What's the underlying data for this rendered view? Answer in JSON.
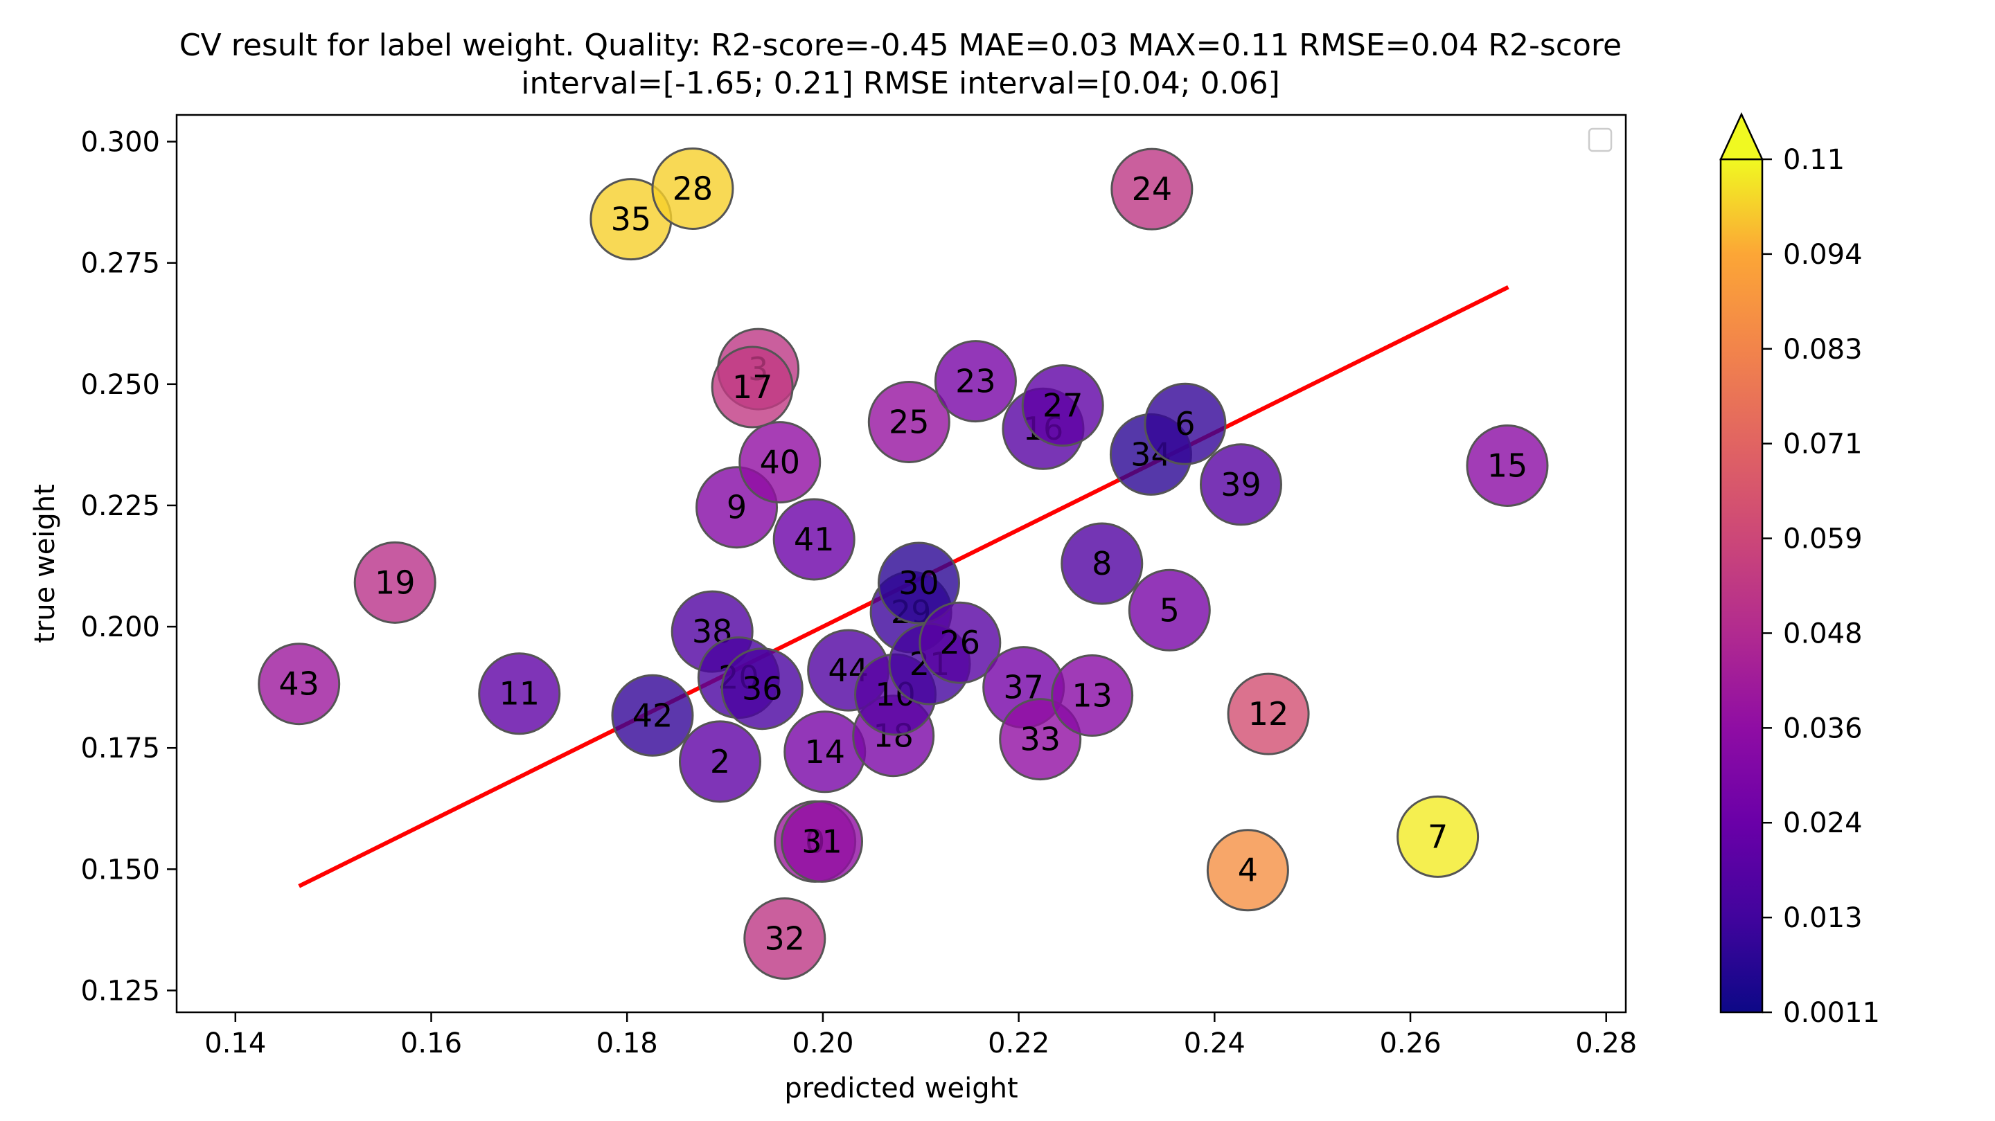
{
  "chart_data": {
    "type": "scatter",
    "title_line1": "CV result for label weight. Quality: R2-score=-0.45 MAE=0.03 MAX=0.11 RMSE=0.04 R2-score",
    "title_line2": "interval=[-1.65; 0.21] RMSE interval=[0.04; 0.06]",
    "xlabel": "predicted weight",
    "ylabel": "true weight",
    "xlim": [
      0.134,
      0.282
    ],
    "ylim": [
      0.1205,
      0.3055
    ],
    "xticks": [
      "0.14",
      "0.16",
      "0.18",
      "0.20",
      "0.22",
      "0.24",
      "0.26",
      "0.28"
    ],
    "yticks": [
      "0.125",
      "0.150",
      "0.175",
      "0.200",
      "0.225",
      "0.250",
      "0.275",
      "0.300"
    ],
    "colormap": "plasma",
    "colorbar": {
      "min": 0.0011,
      "max": 0.11,
      "ticks": [
        "0.0011",
        "0.013",
        "0.024",
        "0.036",
        "0.048",
        "0.059",
        "0.071",
        "0.083",
        "0.094",
        "0.11"
      ],
      "extend": "max"
    },
    "fit_line": {
      "x": [
        0.1465,
        0.27
      ],
      "y": [
        0.1465,
        0.27
      ],
      "color": "#ff0000"
    },
    "legend": "top-right (empty)",
    "points": [
      {
        "label": "43",
        "x": 0.1465,
        "y": 0.1882,
        "err": 0.042
      },
      {
        "label": "19",
        "x": 0.1563,
        "y": 0.2091,
        "err": 0.053
      },
      {
        "label": "11",
        "x": 0.169,
        "y": 0.1862,
        "err": 0.022
      },
      {
        "label": "35",
        "x": 0.1804,
        "y": 0.284,
        "err": 0.104
      },
      {
        "label": "28",
        "x": 0.1867,
        "y": 0.2903,
        "err": 0.104
      },
      {
        "label": "42",
        "x": 0.1826,
        "y": 0.1817,
        "err": 0.01
      },
      {
        "label": "38",
        "x": 0.1887,
        "y": 0.199,
        "err": 0.018
      },
      {
        "label": "2",
        "x": 0.1895,
        "y": 0.1722,
        "err": 0.022
      },
      {
        "label": "20",
        "x": 0.1914,
        "y": 0.1895,
        "err": 0.016
      },
      {
        "label": "9",
        "x": 0.1912,
        "y": 0.2246,
        "err": 0.034
      },
      {
        "label": "3",
        "x": 0.1934,
        "y": 0.2531,
        "err": 0.055
      },
      {
        "label": "17",
        "x": 0.1928,
        "y": 0.2494,
        "err": 0.056
      },
      {
        "label": "36",
        "x": 0.1938,
        "y": 0.1872,
        "err": 0.016
      },
      {
        "label": "40",
        "x": 0.1956,
        "y": 0.2339,
        "err": 0.038
      },
      {
        "label": "32",
        "x": 0.1961,
        "y": 0.1357,
        "err": 0.055
      },
      {
        "label": "0",
        "x": 0.1992,
        "y": 0.1557,
        "err": 0.042
      },
      {
        "label": "31",
        "x": 0.1999,
        "y": 0.1557,
        "err": 0.038
      },
      {
        "label": "41",
        "x": 0.1991,
        "y": 0.218,
        "err": 0.026
      },
      {
        "label": "14",
        "x": 0.2002,
        "y": 0.1742,
        "err": 0.03
      },
      {
        "label": "44",
        "x": 0.2026,
        "y": 0.191,
        "err": 0.018
      },
      {
        "label": "25",
        "x": 0.2088,
        "y": 0.2422,
        "err": 0.04
      },
      {
        "label": "18",
        "x": 0.2072,
        "y": 0.1775,
        "err": 0.031
      },
      {
        "label": "10",
        "x": 0.2074,
        "y": 0.186,
        "err": 0.02
      },
      {
        "label": "29",
        "x": 0.209,
        "y": 0.203,
        "err": 0.012
      },
      {
        "label": "30",
        "x": 0.2098,
        "y": 0.209,
        "err": 0.008
      },
      {
        "label": "21",
        "x": 0.2109,
        "y": 0.1923,
        "err": 0.014
      },
      {
        "label": "26",
        "x": 0.214,
        "y": 0.1967,
        "err": 0.02
      },
      {
        "label": "23",
        "x": 0.2156,
        "y": 0.2506,
        "err": 0.03
      },
      {
        "label": "37",
        "x": 0.2205,
        "y": 0.1875,
        "err": 0.029
      },
      {
        "label": "33",
        "x": 0.2222,
        "y": 0.1768,
        "err": 0.038
      },
      {
        "label": "16",
        "x": 0.2225,
        "y": 0.2408,
        "err": 0.02
      },
      {
        "label": "27",
        "x": 0.2245,
        "y": 0.2456,
        "err": 0.022
      },
      {
        "label": "13",
        "x": 0.2275,
        "y": 0.1858,
        "err": 0.035
      },
      {
        "label": "8",
        "x": 0.2285,
        "y": 0.213,
        "err": 0.018
      },
      {
        "label": "24",
        "x": 0.2336,
        "y": 0.2902,
        "err": 0.055
      },
      {
        "label": "5",
        "x": 0.2354,
        "y": 0.2034,
        "err": 0.03
      },
      {
        "label": "34",
        "x": 0.2335,
        "y": 0.2355,
        "err": 0.008
      },
      {
        "label": "6",
        "x": 0.237,
        "y": 0.2418,
        "err": 0.01
      },
      {
        "label": "4",
        "x": 0.2434,
        "y": 0.1498,
        "err": 0.09
      },
      {
        "label": "39",
        "x": 0.2427,
        "y": 0.2293,
        "err": 0.02
      },
      {
        "label": "12",
        "x": 0.2455,
        "y": 0.182,
        "err": 0.065
      },
      {
        "label": "7",
        "x": 0.2628,
        "y": 0.1567,
        "err": 0.108
      },
      {
        "label": "15",
        "x": 0.2699,
        "y": 0.2332,
        "err": 0.036
      }
    ]
  }
}
